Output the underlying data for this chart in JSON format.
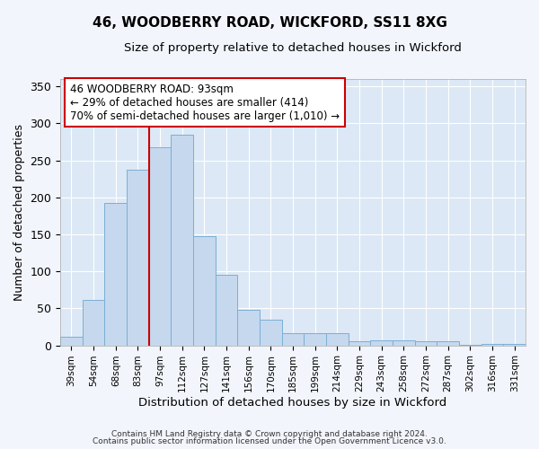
{
  "title": "46, WOODBERRY ROAD, WICKFORD, SS11 8XG",
  "subtitle": "Size of property relative to detached houses in Wickford",
  "xlabel": "Distribution of detached houses by size in Wickford",
  "ylabel": "Number of detached properties",
  "bar_color": "#c5d8ee",
  "bar_edge_color": "#7bafd4",
  "categories": [
    "39sqm",
    "54sqm",
    "68sqm",
    "83sqm",
    "97sqm",
    "112sqm",
    "127sqm",
    "141sqm",
    "156sqm",
    "170sqm",
    "185sqm",
    "199sqm",
    "214sqm",
    "229sqm",
    "243sqm",
    "258sqm",
    "272sqm",
    "287sqm",
    "302sqm",
    "316sqm",
    "331sqm"
  ],
  "values": [
    12,
    62,
    192,
    238,
    268,
    285,
    148,
    96,
    48,
    35,
    16,
    17,
    17,
    5,
    7,
    7,
    5,
    5,
    1,
    2,
    2
  ],
  "ylim": [
    0,
    360
  ],
  "yticks": [
    0,
    50,
    100,
    150,
    200,
    250,
    300,
    350
  ],
  "red_line_x": 3.5,
  "annotation_text": "46 WOODBERRY ROAD: 93sqm\n← 29% of detached houses are smaller (414)\n70% of semi-detached houses are larger (1,010) →",
  "annotation_box_color": "#ffffff",
  "annotation_box_edge": "#cc0000",
  "red_line_color": "#cc0000",
  "background_color": "#f2f5fb",
  "plot_bg_color": "#dce8f5",
  "footer_line1": "Contains HM Land Registry data © Crown copyright and database right 2024.",
  "footer_line2": "Contains public sector information licensed under the Open Government Licence v3.0.",
  "grid_color": "#ffffff",
  "figsize": [
    6.0,
    5.0
  ],
  "dpi": 100
}
